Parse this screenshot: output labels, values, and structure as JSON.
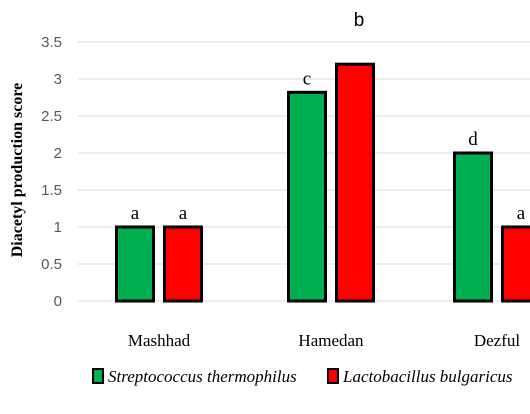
{
  "chart_data": {
    "type": "bar",
    "ylabel": "Diacetyl production score",
    "xlabel": "",
    "ylim": [
      0,
      3.5
    ],
    "ytick_step": 0.5,
    "yticks": [
      "0",
      "0.5",
      "1",
      "1.5",
      "2",
      "2.5",
      "3",
      "3.5"
    ],
    "grid": true,
    "legend_position": "bottom",
    "categories": [
      "Mashhad",
      "Hamedan",
      "Dezful"
    ],
    "series": [
      {
        "name": "Streptococcus thermophilus",
        "color": "#00b050",
        "values": [
          1.0,
          2.82,
          2.0
        ],
        "labels": [
          "a",
          "c",
          "d"
        ]
      },
      {
        "name": "Lactobacillus bulgaricus",
        "color": "#ff0000",
        "values": [
          1.0,
          3.2,
          1.0
        ],
        "labels": [
          "a",
          "b",
          "a"
        ]
      }
    ]
  }
}
